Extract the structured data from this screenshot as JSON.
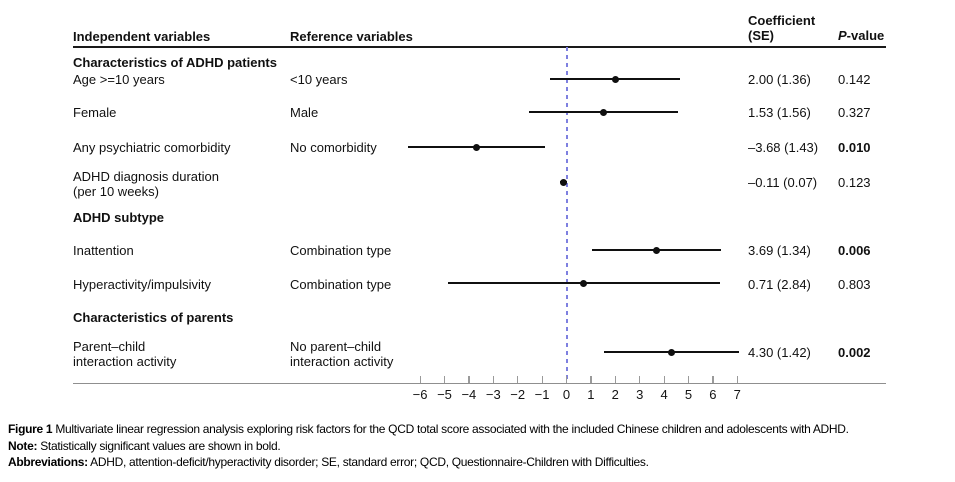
{
  "table": {
    "headers": {
      "independent": "Independent variables",
      "reference": "Reference variables",
      "coefficient": "Coefficient\n(SE)",
      "pvalue_p": "P",
      "pvalue_rest": "-value"
    },
    "rows": [
      {
        "type": "section",
        "label": "Characteristics of ADHD patients"
      },
      {
        "type": "data",
        "independent": "Age >=10 years",
        "reference": "<10 years",
        "coefficient": "2.00 (1.36)",
        "pvalue": "0.142",
        "significant": false
      },
      {
        "type": "data",
        "independent": "Female",
        "reference": "Male",
        "coefficient": "1.53 (1.56)",
        "pvalue": "0.327",
        "significant": false
      },
      {
        "type": "data",
        "independent": "Any psychiatric comorbidity",
        "reference": "No comorbidity",
        "coefficient": "–3.68 (1.43)",
        "pvalue": "0.010",
        "significant": true
      },
      {
        "type": "data",
        "independent": "ADHD diagnosis duration\n(per 10 weeks)",
        "reference": "",
        "coefficient": "–0.11 (0.07)",
        "pvalue": "0.123",
        "significant": false
      },
      {
        "type": "section",
        "label": "ADHD subtype"
      },
      {
        "type": "data",
        "independent": "Inattention",
        "reference": "Combination type",
        "coefficient": "3.69 (1.34)",
        "pvalue": "0.006",
        "significant": true
      },
      {
        "type": "data",
        "independent": "Hyperactivity/impulsivity",
        "reference": "Combination type",
        "coefficient": "0.71 (2.84)",
        "pvalue": "0.803",
        "significant": false
      },
      {
        "type": "section",
        "label": "Characteristics of parents"
      },
      {
        "type": "data",
        "independent": "Parent–child\ninteraction activity",
        "reference": "No parent–child\ninteraction activity",
        "coefficient": "4.30 (1.42)",
        "pvalue": "0.002",
        "significant": true
      }
    ]
  },
  "chart_data": {
    "type": "scatter",
    "subtype": "forest-plot",
    "title": "",
    "xlabel": "",
    "ylabel": "",
    "xlim": [
      -6.9,
      7.9
    ],
    "reference_line_x": 0,
    "reference_line_color": "#7e80e0",
    "tick_values": [
      -6,
      -5,
      -4,
      -3,
      -2,
      -1,
      0,
      1,
      2,
      3,
      4,
      5,
      6,
      7
    ],
    "tick_labels": [
      "−6",
      "−5",
      "−4",
      "−3",
      "−2",
      "−1",
      "0",
      "1",
      "2",
      "3",
      "4",
      "5",
      "6",
      "7"
    ],
    "points": [
      {
        "label": "Age >=10 years",
        "coef": 2.0,
        "se": 1.36,
        "ci_low": -0.67,
        "ci_high": 4.67,
        "pvalue": 0.142
      },
      {
        "label": "Female",
        "coef": 1.53,
        "se": 1.56,
        "ci_low": -1.53,
        "ci_high": 4.59,
        "pvalue": 0.327
      },
      {
        "label": "Any psychiatric comorbidity",
        "coef": -3.68,
        "se": 1.43,
        "ci_low": -6.48,
        "ci_high": -0.88,
        "pvalue": 0.01
      },
      {
        "label": "ADHD diagnosis duration (per 10 weeks)",
        "coef": -0.11,
        "se": 0.07,
        "ci_low": -0.25,
        "ci_high": 0.03,
        "pvalue": 0.123
      },
      {
        "label": "Inattention",
        "coef": 3.69,
        "se": 1.34,
        "ci_low": 1.06,
        "ci_high": 6.32,
        "pvalue": 0.006
      },
      {
        "label": "Hyperactivity/impulsivity",
        "coef": 0.71,
        "se": 2.84,
        "ci_low": -4.86,
        "ci_high": 6.28,
        "pvalue": 0.803
      },
      {
        "label": "Parent–child interaction activity",
        "coef": 4.3,
        "se": 1.42,
        "ci_low": 1.52,
        "ci_high": 7.08,
        "pvalue": 0.002
      }
    ]
  },
  "caption": {
    "figure_label": "Figure 1",
    "figure_text": " Multivariate linear regression analysis exploring risk factors for the QCD total score associated with the included Chinese children and adolescents with ADHD.",
    "note_label": "Note:",
    "note_text": " Statistically significant values are shown in bold.",
    "abbr_label": "Abbreviations:",
    "abbr_text": " ADHD, attention-deficit/hyperactivity disorder; SE, standard error; QCD, Questionnaire-Children with Difficulties."
  }
}
